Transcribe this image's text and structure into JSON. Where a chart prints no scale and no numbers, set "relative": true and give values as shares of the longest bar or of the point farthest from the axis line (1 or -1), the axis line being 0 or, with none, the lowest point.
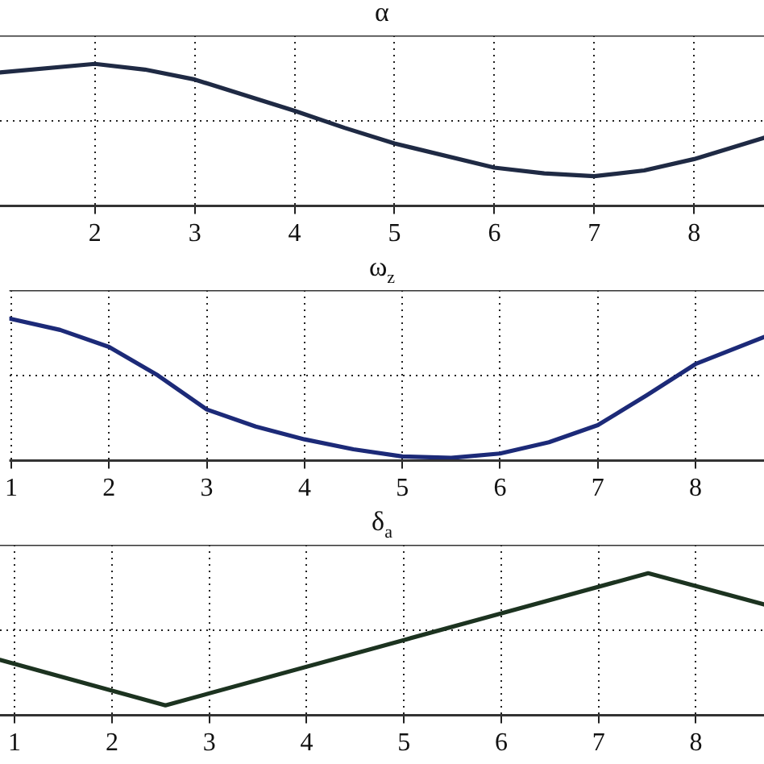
{
  "chart_data": [
    {
      "type": "line",
      "title": "α",
      "relative": true,
      "grid": true,
      "line_style": "solid",
      "marker": "none",
      "legend": false,
      "tick_labels": "x",
      "xlim": [
        1.05,
        8.7
      ],
      "xticks": [
        2,
        3,
        4,
        5,
        6,
        7,
        8
      ],
      "series": [
        {
          "color": "#1f2a44",
          "x": [
            1.05,
            2,
            2.5,
            3,
            4,
            4.5,
            5,
            6,
            6.5,
            7,
            7.5,
            8,
            8.7
          ],
          "values": [
            0.94,
            1,
            0.96,
            0.89,
            0.67,
            0.55,
            0.44,
            0.27,
            0.23,
            0.21,
            0.25,
            0.33,
            0.48
          ]
        }
      ]
    },
    {
      "type": "line",
      "title": "ω$_{z}$",
      "relative": true,
      "grid": true,
      "line_style": "solid",
      "marker": "none",
      "legend": false,
      "tick_labels": "x",
      "xlim": [
        0.98,
        8.7
      ],
      "xticks": [
        1,
        2,
        3,
        4,
        5,
        6,
        7,
        8
      ],
      "series": [
        {
          "color": "#1c2a78",
          "x": [
            0.98,
            1.5,
            2,
            2.5,
            3,
            3.5,
            4,
            4.5,
            5,
            5.5,
            6,
            6.5,
            7,
            7.5,
            8,
            8.7
          ],
          "values": [
            1,
            0.92,
            0.8,
            0.6,
            0.36,
            0.24,
            0.15,
            0.08,
            0.03,
            0.02,
            0.05,
            0.13,
            0.25,
            0.46,
            0.68,
            0.87
          ]
        }
      ]
    },
    {
      "type": "line",
      "title": "δ$_{a}$",
      "relative": true,
      "grid": true,
      "line_style": "solid",
      "marker": "none",
      "legend": false,
      "tick_labels": "x",
      "xlim": [
        0.85,
        8.7
      ],
      "xticks": [
        1,
        2,
        3,
        4,
        5,
        6,
        7,
        8
      ],
      "series": [
        {
          "color": "#1c3320",
          "x": [
            0.85,
            2.55,
            5,
            7.51,
            8.7
          ],
          "values": [
            0.39,
            0.07,
            0.53,
            1,
            0.78
          ]
        }
      ]
    }
  ]
}
